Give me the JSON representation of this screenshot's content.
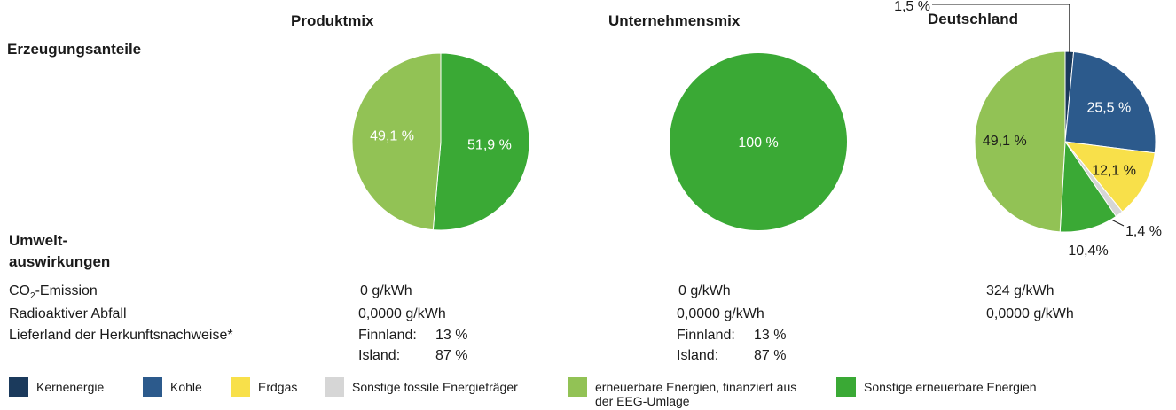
{
  "headers": {
    "produktmix": "Produktmix",
    "unternehmensmix": "Unternehmensmix",
    "deutschland": "Deutschland"
  },
  "sections": {
    "erzeugung": "Erzeugungsanteile",
    "umwelt_line1": "Umwelt-",
    "umwelt_line2": "auswirkungen"
  },
  "rows": {
    "co2_label_prefix": "CO",
    "co2_label_sub": "2",
    "co2_label_suffix": "-Emission",
    "radio_label": "Radioaktiver Abfall",
    "liefer_label": "Lieferland der Herkunftsnachweise*"
  },
  "values": {
    "produktmix": {
      "co2": "0 g/kWh",
      "radio": "0,0000 g/kWh",
      "liefer1_country": "Finnland:",
      "liefer1_pct": "13 %",
      "liefer2_country": "Island:",
      "liefer2_pct": "87 %"
    },
    "unternehmensmix": {
      "co2": "0 g/kWh",
      "radio": "0,0000 g/kWh",
      "liefer1_country": "Finnland:",
      "liefer1_pct": "13 %",
      "liefer2_country": "Island:",
      "liefer2_pct": "87 %"
    },
    "deutschland": {
      "co2": "324 g/kWh",
      "radio": "0,0000 g/kWh"
    }
  },
  "colors": {
    "kernenergie": "#1b3a5c",
    "kohle": "#2c5a8c",
    "erdgas": "#f8e04a",
    "sonstige_fossile": "#d6d6d6",
    "erneuerbare_eeg": "#92c255",
    "sonstige_erneuerbare": "#3aa935"
  },
  "legend": [
    {
      "key": "kernenergie",
      "label": "Kernenergie"
    },
    {
      "key": "kohle",
      "label": "Kohle"
    },
    {
      "key": "erdgas",
      "label": "Erdgas"
    },
    {
      "key": "sonstige_fossile",
      "label": "Sonstige fossile Energieträger"
    },
    {
      "key": "erneuerbare_eeg",
      "label": "erneuerbare Energien, finanziert aus der EEG-Umlage"
    },
    {
      "key": "sonstige_erneuerbare",
      "label": "Sonstige erneuerbare Energien"
    }
  ],
  "chart_data": [
    {
      "type": "pie",
      "title": "Produktmix",
      "slices": [
        {
          "key": "sonstige_erneuerbare",
          "value": 51.9,
          "label": "51,9 %",
          "label_color": "#ffffff"
        },
        {
          "key": "erneuerbare_eeg",
          "value": 49.1,
          "label": "49,1 %",
          "label_color": "#ffffff"
        }
      ]
    },
    {
      "type": "pie",
      "title": "Unternehmensmix",
      "slices": [
        {
          "key": "sonstige_erneuerbare",
          "value": 100,
          "label": "100 %",
          "label_color": "#ffffff"
        }
      ]
    },
    {
      "type": "pie",
      "title": "Deutschland",
      "slices": [
        {
          "key": "kernenergie",
          "value": 1.5,
          "label": "1,5 %",
          "label_color": "#1a1a1a"
        },
        {
          "key": "kohle",
          "value": 25.5,
          "label": "25,5 %",
          "label_color": "#ffffff"
        },
        {
          "key": "erdgas",
          "value": 12.1,
          "label": "12,1 %",
          "label_color": "#1a1a1a"
        },
        {
          "key": "sonstige_fossile",
          "value": 1.4,
          "label": "1,4 %",
          "label_color": "#1a1a1a"
        },
        {
          "key": "sonstige_erneuerbare",
          "value": 10.4,
          "label": "10,4%",
          "label_color": "#1a1a1a"
        },
        {
          "key": "erneuerbare_eeg",
          "value": 49.1,
          "label": "49,1 %",
          "label_color": "#1a1a1a"
        }
      ]
    }
  ]
}
